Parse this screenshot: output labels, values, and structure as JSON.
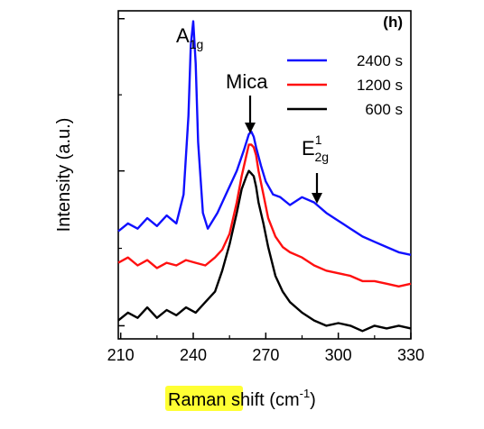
{
  "chart_data": {
    "type": "line",
    "panel_label": "(h)",
    "xlabel_parts": [
      "Raman",
      " shift (cm",
      "-1",
      ")"
    ],
    "xlabel_highlight": "#ffff33",
    "ylabel": "Intensity (a.u.)",
    "xlim": [
      209,
      330
    ],
    "x_ticks": [
      210,
      240,
      270,
      300,
      330
    ],
    "x_tick_labels": [
      "210",
      "240",
      "270",
      "300",
      "330"
    ],
    "ylim": [
      0,
      1.25
    ],
    "y_tick_values": [
      0.05,
      0.64,
      1.22
    ],
    "y_tick_labels_shown": false,
    "grid": false,
    "legend_position": "top-right",
    "annotations": [
      {
        "main": "A",
        "sub": "1g",
        "sup": "",
        "x": 240,
        "arrow": false
      },
      {
        "main": "Mica",
        "sub": "",
        "sup": "",
        "x": 265,
        "arrow": true
      },
      {
        "main": "E",
        "sub": "2g",
        "sup": "1",
        "x": 291,
        "arrow": true
      }
    ],
    "series": [
      {
        "name": "2400 s",
        "color": "#1010ff",
        "x": [
          209,
          213,
          217,
          221,
          225,
          229,
          233,
          236,
          238,
          239,
          240,
          241,
          242,
          244,
          246,
          250,
          254,
          258,
          261,
          263,
          264,
          265,
          266,
          268,
          270,
          273,
          276,
          280,
          285,
          290,
          295,
          300,
          305,
          310,
          315,
          320,
          325,
          330
        ],
        "y": [
          0.41,
          0.44,
          0.42,
          0.46,
          0.43,
          0.47,
          0.44,
          0.55,
          0.85,
          1.12,
          1.21,
          1.05,
          0.75,
          0.48,
          0.42,
          0.48,
          0.56,
          0.64,
          0.72,
          0.78,
          0.79,
          0.77,
          0.73,
          0.66,
          0.6,
          0.55,
          0.54,
          0.51,
          0.54,
          0.52,
          0.48,
          0.45,
          0.42,
          0.39,
          0.37,
          0.35,
          0.33,
          0.32
        ]
      },
      {
        "name": "1200 s",
        "color": "#ff1010",
        "x": [
          209,
          213,
          217,
          221,
          225,
          229,
          233,
          237,
          241,
          245,
          249,
          252,
          255,
          258,
          260,
          262,
          263,
          264,
          265,
          266,
          267,
          269,
          271,
          274,
          277,
          280,
          285,
          290,
          295,
          300,
          305,
          310,
          315,
          320,
          325,
          330
        ],
        "y": [
          0.29,
          0.31,
          0.28,
          0.3,
          0.27,
          0.29,
          0.28,
          0.3,
          0.29,
          0.28,
          0.31,
          0.34,
          0.4,
          0.52,
          0.62,
          0.7,
          0.74,
          0.74,
          0.73,
          0.7,
          0.64,
          0.55,
          0.46,
          0.39,
          0.35,
          0.33,
          0.31,
          0.28,
          0.26,
          0.25,
          0.24,
          0.22,
          0.22,
          0.21,
          0.2,
          0.21
        ]
      },
      {
        "name": "600 s",
        "color": "#000000",
        "x": [
          209,
          213,
          217,
          221,
          225,
          229,
          233,
          237,
          241,
          245,
          249,
          252,
          255,
          258,
          260,
          262,
          263,
          264,
          265,
          266,
          267,
          269,
          271,
          274,
          277,
          280,
          285,
          290,
          295,
          300,
          305,
          310,
          315,
          320,
          325,
          330
        ],
        "y": [
          0.07,
          0.1,
          0.08,
          0.12,
          0.08,
          0.11,
          0.09,
          0.12,
          0.1,
          0.14,
          0.18,
          0.26,
          0.36,
          0.48,
          0.57,
          0.62,
          0.64,
          0.63,
          0.62,
          0.58,
          0.52,
          0.44,
          0.35,
          0.24,
          0.18,
          0.14,
          0.1,
          0.07,
          0.05,
          0.06,
          0.05,
          0.03,
          0.05,
          0.04,
          0.05,
          0.04
        ]
      }
    ]
  }
}
